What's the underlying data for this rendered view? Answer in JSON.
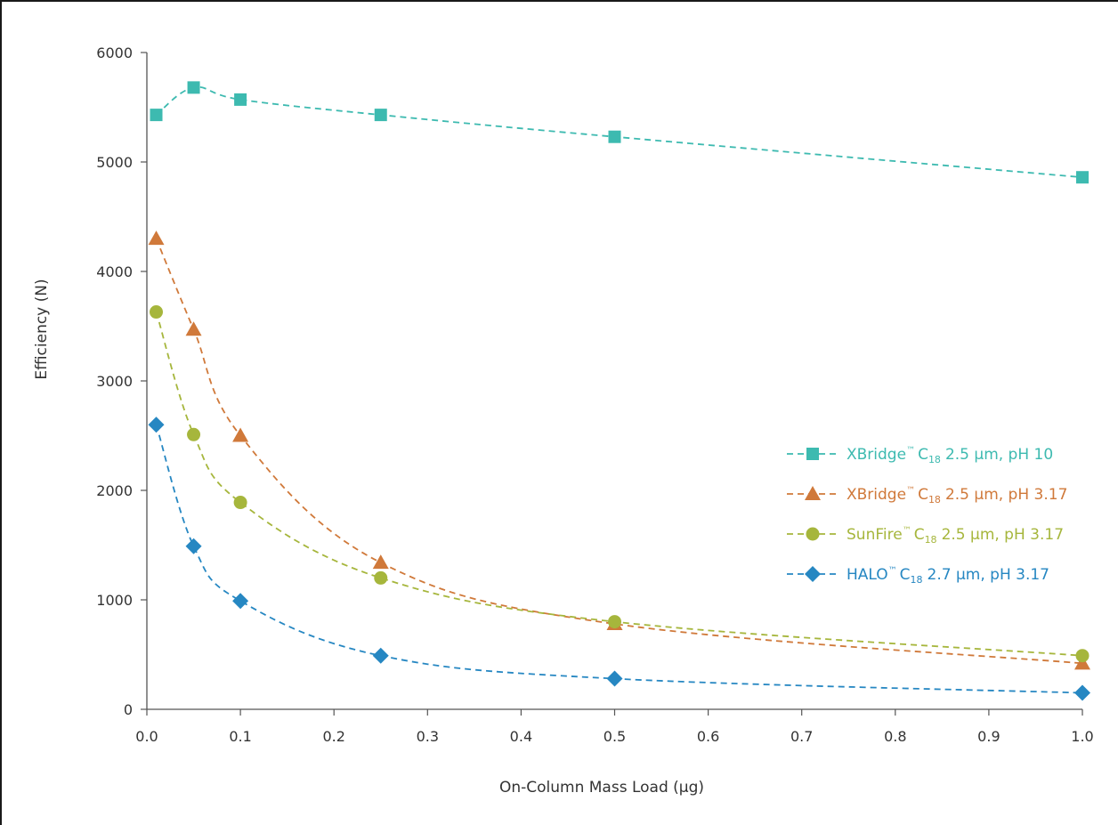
{
  "chart_data": {
    "type": "line",
    "title": "",
    "xlabel": "On-Column Mass Load (µg)",
    "ylabel": "Efficiency (N)",
    "xlim": [
      0.0,
      1.0
    ],
    "ylim": [
      0,
      6000
    ],
    "x_ticks": [
      "0.0",
      "0.1",
      "0.2",
      "0.3",
      "0.4",
      "0.5",
      "0.6",
      "0.7",
      "0.8",
      "0.9",
      "1.0"
    ],
    "y_ticks": [
      "0",
      "1000",
      "2000",
      "3000",
      "4000",
      "5000",
      "6000"
    ],
    "grid": false,
    "legend_position": "right",
    "x": [
      0.01,
      0.05,
      0.1,
      0.25,
      0.5,
      1.0
    ],
    "series": [
      {
        "name": "XBridge™ C18 2.5 µm, pH 10",
        "legend": {
          "brand": "XBridge",
          "tm": "™",
          "base": "C",
          "sub": "18",
          "rest": "2.5 µm, pH 10"
        },
        "color": "#3dbab0",
        "marker": "square",
        "values": [
          5430,
          5680,
          5570,
          5430,
          5230,
          4860
        ]
      },
      {
        "name": "XBridge™ C18 2.5 µm, pH 3.17",
        "legend": {
          "brand": "XBridge",
          "tm": "™",
          "base": "C",
          "sub": "18",
          "rest": "2.5 µm, pH 3.17"
        },
        "color": "#d0793a",
        "marker": "triangle",
        "values": [
          4300,
          3470,
          2500,
          1340,
          780,
          420
        ]
      },
      {
        "name": "SunFire™ C18 2.5 µm, pH 3.17",
        "legend": {
          "brand": "SunFire",
          "tm": "™",
          "base": "C",
          "sub": "18",
          "rest": "2.5 µm, pH 3.17"
        },
        "color": "#a6b63c",
        "marker": "circle",
        "values": [
          3630,
          2510,
          1890,
          1200,
          800,
          490
        ]
      },
      {
        "name": "HALO™ C18 2.7 µm, pH 3.17",
        "legend": {
          "brand": "HALO",
          "tm": "™",
          "base": "C",
          "sub": "18",
          "rest": "2.7 µm, pH 3.17"
        },
        "color": "#2687c2",
        "marker": "diamond",
        "values": [
          2600,
          1490,
          990,
          490,
          280,
          150
        ]
      }
    ]
  }
}
